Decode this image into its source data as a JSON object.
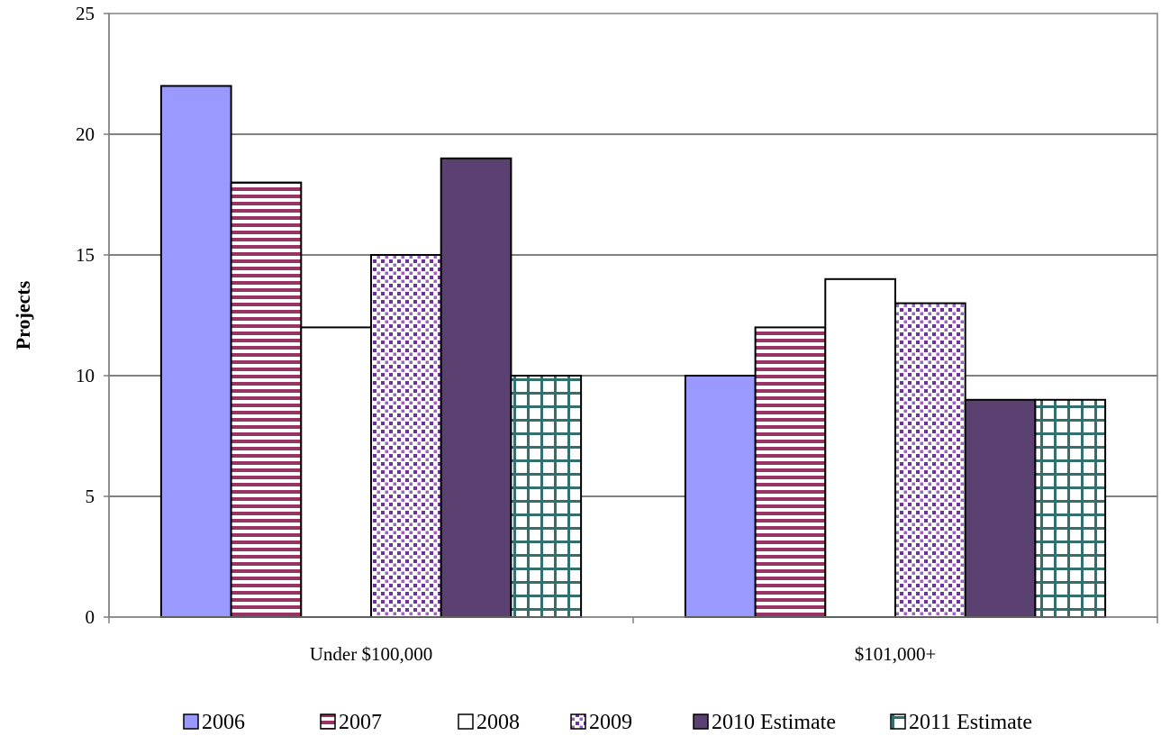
{
  "chart_data": {
    "type": "bar",
    "title": "",
    "xlabel": "",
    "ylabel": "Projects",
    "ylim": [
      0,
      25
    ],
    "yticks": [
      0,
      5,
      10,
      15,
      20,
      25
    ],
    "grid": true,
    "legend_position": "bottom",
    "categories": [
      "Under $100,000",
      "$101,000+"
    ],
    "series": [
      {
        "name": "2006",
        "values": [
          22,
          10
        ],
        "color": "#9999ff",
        "pattern": "solid"
      },
      {
        "name": "2007",
        "values": [
          18,
          12
        ],
        "color": "#993366",
        "pattern": "horizontal-stripes"
      },
      {
        "name": "2008",
        "values": [
          12,
          14
        ],
        "color": "#ffffff",
        "pattern": "solid"
      },
      {
        "name": "2009",
        "values": [
          15,
          13
        ],
        "color": "#7030a0",
        "pattern": "dots"
      },
      {
        "name": "2010 Estimate",
        "values": [
          19,
          9
        ],
        "color": "#5b4072",
        "pattern": "solid"
      },
      {
        "name": "2011 Estimate",
        "values": [
          10,
          9
        ],
        "color": "#31706f",
        "pattern": "grid"
      }
    ]
  }
}
